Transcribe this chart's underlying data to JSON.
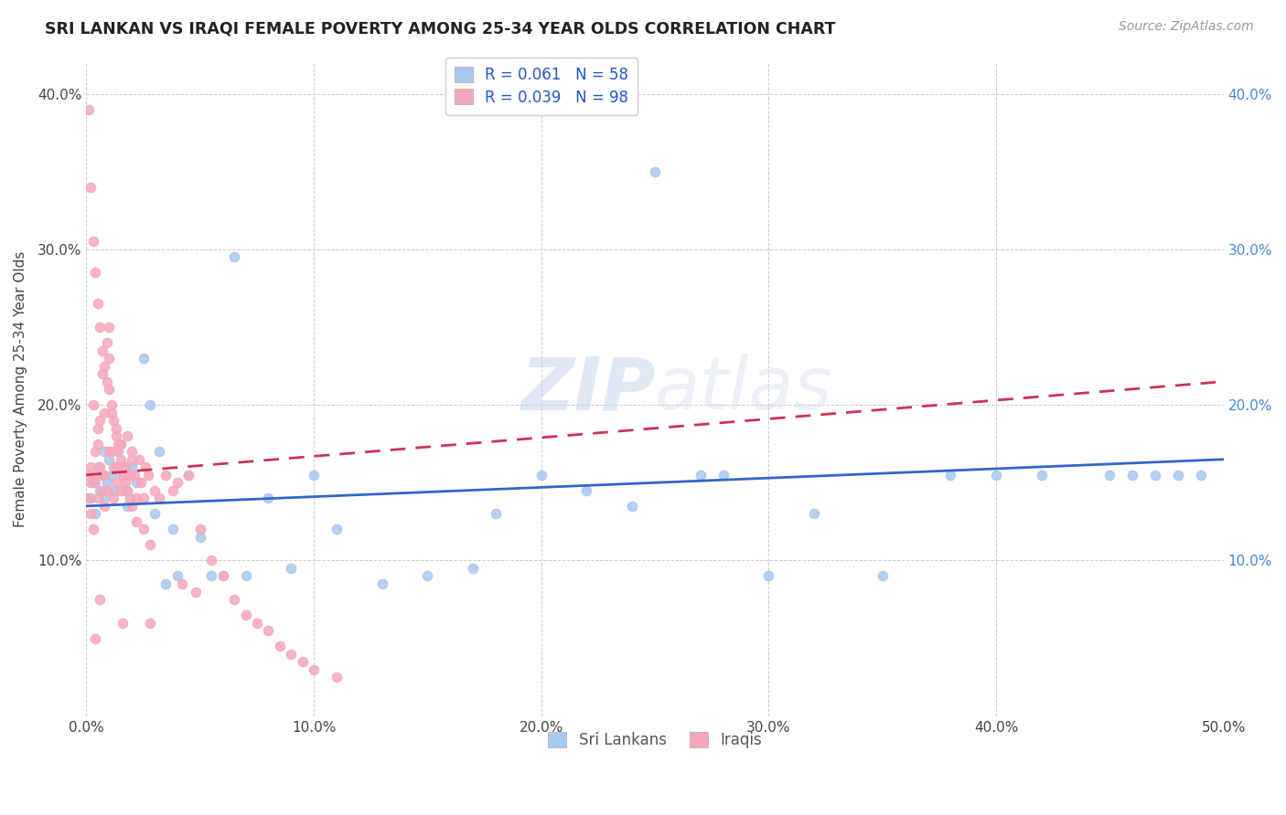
{
  "title": "SRI LANKAN VS IRAQI FEMALE POVERTY AMONG 25-34 YEAR OLDS CORRELATION CHART",
  "source": "Source: ZipAtlas.com",
  "ylabel": "Female Poverty Among 25-34 Year Olds",
  "xlim": [
    0.0,
    0.5
  ],
  "ylim": [
    0.0,
    0.42
  ],
  "xticks": [
    0.0,
    0.1,
    0.2,
    0.3,
    0.4,
    0.5
  ],
  "yticks": [
    0.1,
    0.2,
    0.3,
    0.4
  ],
  "xtick_labels": [
    "0.0%",
    "10.0%",
    "20.0%",
    "30.0%",
    "40.0%",
    "50.0%"
  ],
  "ytick_labels_left": [
    "10.0%",
    "20.0%",
    "30.0%",
    "40.0%"
  ],
  "ytick_labels_right": [
    "10.0%",
    "20.0%",
    "30.0%",
    "40.0%"
  ],
  "sri_lankan_color": "#a8c8f0",
  "iraqi_color": "#f5a8bc",
  "sri_lankan_R": 0.061,
  "sri_lankan_N": 58,
  "iraqi_R": 0.039,
  "iraqi_N": 98,
  "sri_lankan_line_color": "#3366cc",
  "iraqi_line_color": "#cc3355",
  "sl_line_x0": 0.0,
  "sl_line_y0": 0.135,
  "sl_line_x1": 0.5,
  "sl_line_y1": 0.165,
  "iq_line_x0": 0.0,
  "iq_line_y0": 0.155,
  "iq_line_x1": 0.5,
  "iq_line_y1": 0.215,
  "sl_x": [
    0.002,
    0.003,
    0.004,
    0.005,
    0.006,
    0.007,
    0.008,
    0.008,
    0.009,
    0.01,
    0.011,
    0.012,
    0.013,
    0.014,
    0.015,
    0.016,
    0.017,
    0.018,
    0.02,
    0.022,
    0.025,
    0.028,
    0.03,
    0.032,
    0.035,
    0.038,
    0.04,
    0.045,
    0.05,
    0.055,
    0.06,
    0.065,
    0.07,
    0.08,
    0.09,
    0.1,
    0.11,
    0.13,
    0.15,
    0.17,
    0.18,
    0.2,
    0.22,
    0.24,
    0.25,
    0.27,
    0.28,
    0.3,
    0.32,
    0.35,
    0.38,
    0.4,
    0.42,
    0.45,
    0.46,
    0.47,
    0.48,
    0.49
  ],
  "sl_y": [
    0.14,
    0.15,
    0.13,
    0.16,
    0.145,
    0.155,
    0.14,
    0.17,
    0.15,
    0.165,
    0.155,
    0.145,
    0.16,
    0.17,
    0.175,
    0.155,
    0.145,
    0.135,
    0.16,
    0.15,
    0.23,
    0.2,
    0.13,
    0.17,
    0.085,
    0.12,
    0.09,
    0.155,
    0.115,
    0.09,
    0.09,
    0.295,
    0.09,
    0.14,
    0.095,
    0.155,
    0.12,
    0.085,
    0.09,
    0.095,
    0.13,
    0.155,
    0.145,
    0.135,
    0.35,
    0.155,
    0.155,
    0.09,
    0.13,
    0.09,
    0.155,
    0.155,
    0.155,
    0.155,
    0.155,
    0.155,
    0.155,
    0.155
  ],
  "iq_x": [
    0.001,
    0.001,
    0.002,
    0.002,
    0.002,
    0.003,
    0.003,
    0.003,
    0.004,
    0.004,
    0.004,
    0.005,
    0.005,
    0.005,
    0.006,
    0.006,
    0.006,
    0.007,
    0.007,
    0.007,
    0.008,
    0.008,
    0.008,
    0.009,
    0.009,
    0.01,
    0.01,
    0.01,
    0.011,
    0.011,
    0.012,
    0.012,
    0.013,
    0.013,
    0.014,
    0.014,
    0.015,
    0.015,
    0.016,
    0.016,
    0.017,
    0.017,
    0.018,
    0.018,
    0.019,
    0.02,
    0.02,
    0.021,
    0.022,
    0.023,
    0.024,
    0.025,
    0.026,
    0.027,
    0.028,
    0.03,
    0.032,
    0.035,
    0.038,
    0.04,
    0.042,
    0.045,
    0.048,
    0.05,
    0.055,
    0.06,
    0.065,
    0.07,
    0.075,
    0.08,
    0.085,
    0.09,
    0.095,
    0.1,
    0.11,
    0.001,
    0.002,
    0.003,
    0.004,
    0.005,
    0.006,
    0.007,
    0.008,
    0.009,
    0.01,
    0.011,
    0.012,
    0.013,
    0.014,
    0.015,
    0.016,
    0.017,
    0.018,
    0.019,
    0.02,
    0.022,
    0.025,
    0.028
  ],
  "iq_y": [
    0.155,
    0.14,
    0.16,
    0.13,
    0.15,
    0.155,
    0.12,
    0.2,
    0.15,
    0.17,
    0.05,
    0.185,
    0.14,
    0.175,
    0.16,
    0.075,
    0.19,
    0.155,
    0.145,
    0.22,
    0.155,
    0.135,
    0.195,
    0.145,
    0.24,
    0.21,
    0.17,
    0.23,
    0.195,
    0.17,
    0.16,
    0.14,
    0.15,
    0.185,
    0.17,
    0.16,
    0.175,
    0.145,
    0.06,
    0.155,
    0.16,
    0.15,
    0.145,
    0.18,
    0.155,
    0.165,
    0.17,
    0.155,
    0.14,
    0.165,
    0.15,
    0.14,
    0.16,
    0.155,
    0.06,
    0.145,
    0.14,
    0.155,
    0.145,
    0.15,
    0.085,
    0.155,
    0.08,
    0.12,
    0.1,
    0.09,
    0.075,
    0.065,
    0.06,
    0.055,
    0.045,
    0.04,
    0.035,
    0.03,
    0.025,
    0.39,
    0.34,
    0.305,
    0.285,
    0.265,
    0.25,
    0.235,
    0.225,
    0.215,
    0.25,
    0.2,
    0.19,
    0.18,
    0.175,
    0.165,
    0.16,
    0.155,
    0.145,
    0.14,
    0.135,
    0.125,
    0.12,
    0.11
  ]
}
